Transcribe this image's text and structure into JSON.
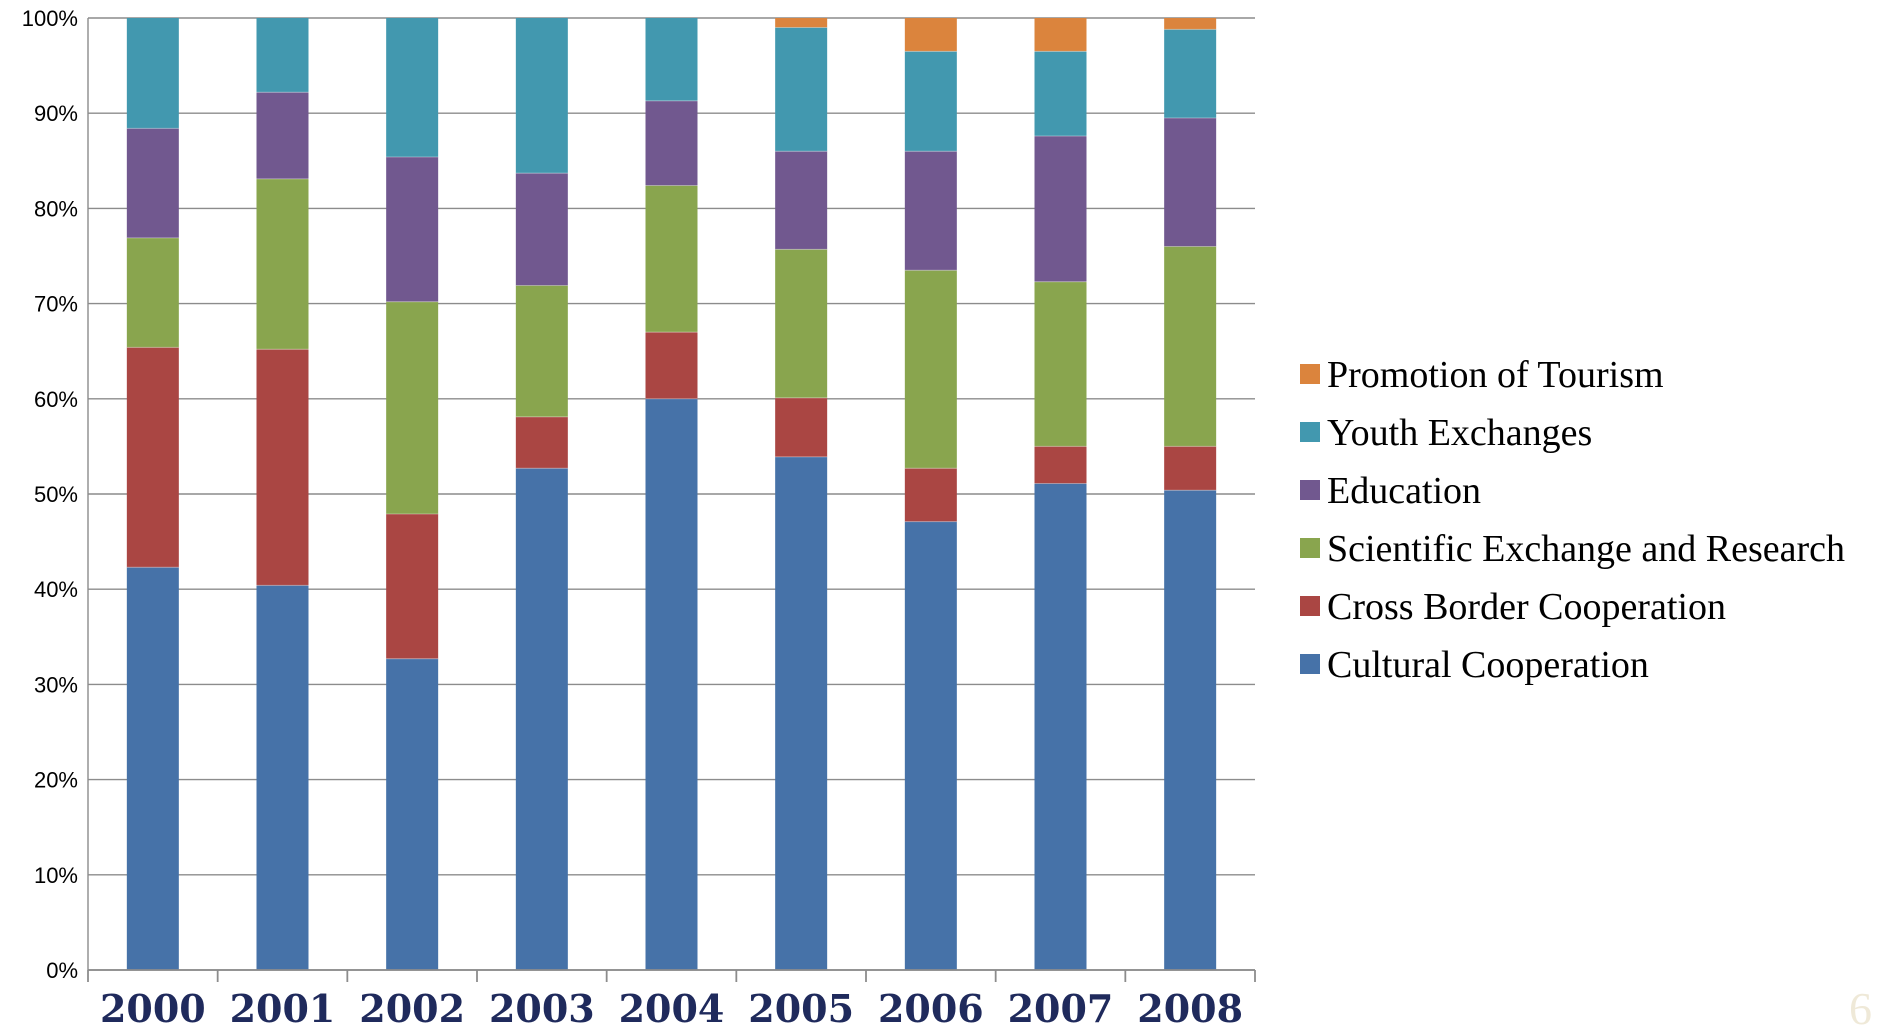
{
  "chart_data": {
    "type": "bar",
    "stacked": "percent",
    "categories": [
      "2000",
      "2001",
      "2002",
      "2003",
      "2004",
      "2005",
      "2006",
      "2007",
      "2008"
    ],
    "series": [
      {
        "name": "Cultural Cooperation",
        "color": "#4672a8",
        "values": [
          42.3,
          40.4,
          32.7,
          52.7,
          60.0,
          53.9,
          47.1,
          51.1,
          50.4
        ]
      },
      {
        "name": "Cross Border Cooperation",
        "color": "#aa4643",
        "values": [
          23.1,
          24.8,
          15.2,
          5.4,
          7.0,
          6.2,
          5.6,
          3.9,
          4.6
        ]
      },
      {
        "name": "Scientific Exchange and Research",
        "color": "#89a54e",
        "values": [
          11.5,
          17.9,
          22.3,
          13.8,
          15.4,
          15.6,
          20.8,
          17.3,
          21.0
        ]
      },
      {
        "name": "Education",
        "color": "#71588f",
        "values": [
          11.5,
          9.1,
          15.2,
          11.8,
          8.9,
          10.3,
          12.5,
          15.3,
          13.5
        ]
      },
      {
        "name": "Youth Exchanges",
        "color": "#4298af",
        "values": [
          11.6,
          7.8,
          14.6,
          16.3,
          8.7,
          13.0,
          10.5,
          8.9,
          9.3
        ]
      },
      {
        "name": "Promotion of Tourism",
        "color": "#db843d",
        "values": [
          0,
          0,
          0,
          0,
          0,
          1.0,
          3.5,
          3.5,
          1.2
        ]
      }
    ],
    "legend_order": [
      "Promotion of Tourism",
      "Youth Exchanges",
      "Education",
      "Scientific Exchange and Research",
      "Cross Border Cooperation",
      "Cultural Cooperation"
    ],
    "y_ticks": [
      "0%",
      "10%",
      "20%",
      "30%",
      "40%",
      "50%",
      "60%",
      "70%",
      "80%",
      "90%",
      "100%"
    ],
    "ylim": [
      0,
      100
    ],
    "grid": true,
    "legend_position": "right"
  },
  "page_number": "6"
}
